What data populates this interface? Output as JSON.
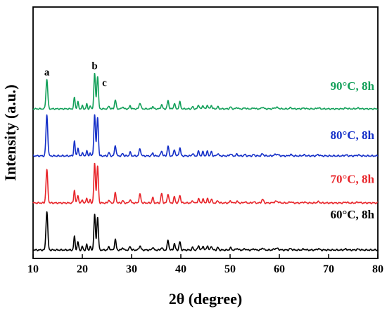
{
  "chart_data": {
    "type": "line",
    "xlabel": "2θ (degree)",
    "ylabel": "Intensity (a.u.)",
    "xlim": [
      10,
      80
    ],
    "x_ticks": [
      10,
      20,
      30,
      40,
      50,
      60,
      70,
      80
    ],
    "y_ticks_shown": false,
    "grid": false,
    "legend": "inline labels at right of each trace",
    "peak_labels": [
      {
        "text": "a",
        "x": 12.8
      },
      {
        "text": "b",
        "x": 22.5
      },
      {
        "text": "c",
        "x": 23.2
      }
    ],
    "peaks": [
      {
        "x": 12.8,
        "w": 0.18,
        "h": 1.0
      },
      {
        "x": 18.4,
        "w": 0.14,
        "h": 0.33
      },
      {
        "x": 19.1,
        "w": 0.14,
        "h": 0.2
      },
      {
        "x": 20.0,
        "w": 0.12,
        "h": 0.09
      },
      {
        "x": 20.9,
        "w": 0.12,
        "h": 0.14
      },
      {
        "x": 21.6,
        "w": 0.12,
        "h": 0.08
      },
      {
        "x": 22.5,
        "w": 0.16,
        "h": 1.02
      },
      {
        "x": 23.1,
        "w": 0.16,
        "h": 0.95
      },
      {
        "x": 25.4,
        "w": 0.15,
        "h": 0.08
      },
      {
        "x": 26.7,
        "w": 0.16,
        "h": 0.26
      },
      {
        "x": 28.2,
        "w": 0.15,
        "h": 0.06
      },
      {
        "x": 29.7,
        "w": 0.15,
        "h": 0.09
      },
      {
        "x": 31.7,
        "w": 0.18,
        "h": 0.17
      },
      {
        "x": 34.3,
        "w": 0.15,
        "h": 0.07
      },
      {
        "x": 36.1,
        "w": 0.16,
        "h": 0.12
      },
      {
        "x": 37.4,
        "w": 0.16,
        "h": 0.24
      },
      {
        "x": 38.7,
        "w": 0.15,
        "h": 0.16
      },
      {
        "x": 39.8,
        "w": 0.16,
        "h": 0.2
      },
      {
        "x": 42.4,
        "w": 0.15,
        "h": 0.06
      },
      {
        "x": 43.6,
        "w": 0.16,
        "h": 0.11
      },
      {
        "x": 44.5,
        "w": 0.15,
        "h": 0.1
      },
      {
        "x": 45.4,
        "w": 0.15,
        "h": 0.11
      },
      {
        "x": 46.2,
        "w": 0.15,
        "h": 0.1
      },
      {
        "x": 47.5,
        "w": 0.16,
        "h": 0.06
      },
      {
        "x": 50.1,
        "w": 0.18,
        "h": 0.05
      },
      {
        "x": 51.4,
        "w": 0.18,
        "h": 0.04
      },
      {
        "x": 53.0,
        "w": 0.18,
        "h": 0.03
      },
      {
        "x": 54.8,
        "w": 0.18,
        "h": 0.03
      },
      {
        "x": 56.6,
        "w": 0.2,
        "h": 0.05
      },
      {
        "x": 59.4,
        "w": 0.4,
        "h": 0.04
      },
      {
        "x": 62.3,
        "w": 0.25,
        "h": 0.03
      },
      {
        "x": 65.0,
        "w": 0.3,
        "h": 0.02
      },
      {
        "x": 67.9,
        "w": 0.25,
        "h": 0.03
      },
      {
        "x": 73.5,
        "w": 0.3,
        "h": 0.02
      },
      {
        "x": 76.0,
        "w": 0.3,
        "h": 0.02
      }
    ],
    "series": [
      {
        "name": "60°C, 8h",
        "color": "#000000",
        "baseline_offset": 0,
        "scale": 1.0,
        "label_offset": 1.5,
        "adjust": [
          {
            "x": 12.8,
            "mult": 0.95
          },
          {
            "x": 22.5,
            "mult": 0.85
          },
          {
            "x": 23.1,
            "mult": 0.85
          },
          {
            "x": 36.1,
            "mult": 0.5
          },
          {
            "x": 31.7,
            "mult": 0.6
          }
        ]
      },
      {
        "name": "70°C, 8h",
        "color": "#e8262b",
        "baseline_offset": 1.0,
        "scale": 0.95,
        "label_offset": 0.95,
        "adjust": [
          {
            "x": 12.8,
            "mult": 0.85
          },
          {
            "x": 36.1,
            "mult": 2.0
          },
          {
            "x": 34.3,
            "mult": 2.0
          },
          {
            "x": 56.6,
            "mult": 1.8
          },
          {
            "x": 31.7,
            "mult": 1.3
          }
        ]
      },
      {
        "name": "80°C, 8h",
        "color": "#1530c8",
        "baseline_offset": 2.0,
        "scale": 1.0,
        "label_offset": 0.8,
        "adjust": [
          {
            "x": 18.4,
            "mult": 1.1
          }
        ]
      },
      {
        "name": "90°C, 8h",
        "color": "#13a05a",
        "baseline_offset": 3.0,
        "scale": 0.85,
        "label_offset": 0.9,
        "adjust": [
          {
            "x": 12.8,
            "mult": 0.85
          }
        ]
      }
    ]
  }
}
